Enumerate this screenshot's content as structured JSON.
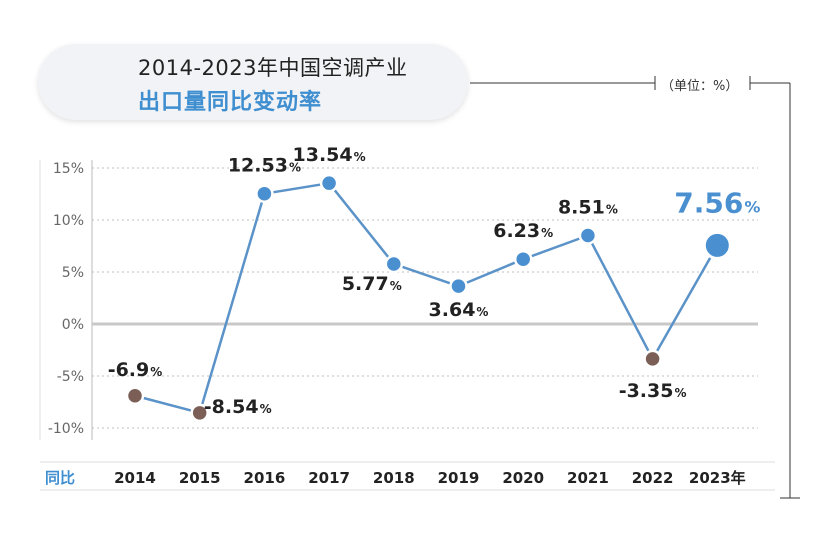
{
  "title": {
    "line1": "2014-2023年中国空调产业",
    "line2": "出口量同比变动率"
  },
  "unit_label": "（单位：%）",
  "colors": {
    "line": "#5b93c9",
    "positive_point": "#4a8fcf",
    "negative_point": "#7b5f57",
    "highlight_text": "#4a8fcf",
    "zero_line": "#c8c8c8"
  },
  "chart_data": {
    "type": "line",
    "xlabel": "同比",
    "x": [
      "2014",
      "2015",
      "2016",
      "2017",
      "2018",
      "2019",
      "2020",
      "2021",
      "2022",
      "2023"
    ],
    "x_last_suffix": "年",
    "series": [
      {
        "values": [
          -6.9,
          -8.54,
          12.53,
          13.54,
          5.77,
          3.64,
          6.23,
          8.51,
          -3.35,
          7.56
        ]
      }
    ],
    "data_labels": [
      "-6.9",
      "-8.54",
      "12.53",
      "13.54",
      "5.77",
      "3.64",
      "6.23",
      "8.51",
      "-3.35",
      "7.56"
    ],
    "label_suffix": "%",
    "y_ticks": [
      "15%",
      "10%",
      "5%",
      "0%",
      "-5%",
      "-10%"
    ],
    "y_tick_values": [
      15,
      10,
      5,
      0,
      -5,
      -10
    ],
    "ylim": [
      -10,
      15
    ],
    "grid": true,
    "highlight_index": 9
  }
}
